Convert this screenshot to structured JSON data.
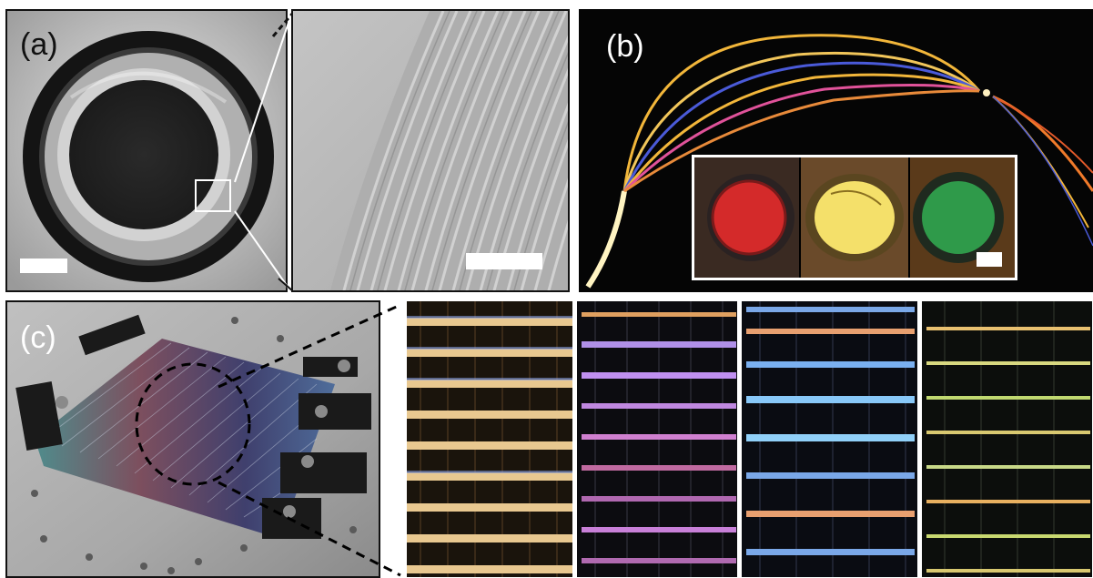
{
  "figure": {
    "panel_a": {
      "label": "(a)"
    },
    "panel_b": {
      "label": "(b)"
    },
    "panel_c": {
      "label": "(c)"
    }
  },
  "colors": {
    "fiber_yellow": "#f2b63a",
    "fiber_blue": "#4a5ad8",
    "fiber_pink": "#e0529a",
    "fiber_orange": "#f07a2a",
    "inset_red": "#d42a2a",
    "inset_yellow": "#f4e06a",
    "inset_green": "#2f9a4a"
  }
}
